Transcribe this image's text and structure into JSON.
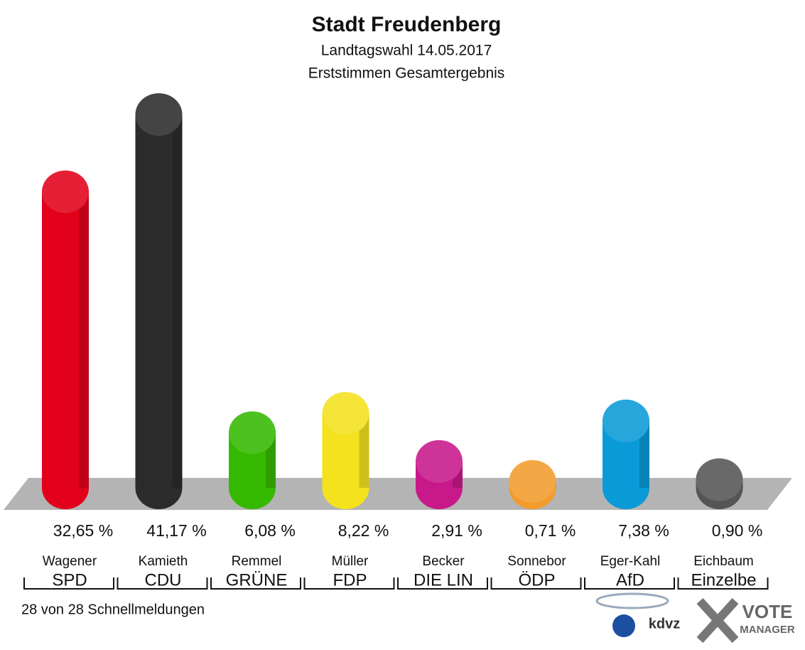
{
  "chart_data": {
    "type": "bar",
    "title": "Stadt Freudenberg",
    "subtitle": "Landtagswahl 14.05.2017",
    "subtitle2": "Erststimmen Gesamtergebnis",
    "categories": [
      "SPD",
      "CDU",
      "GRÜNE",
      "FDP",
      "DIE LIN",
      "ÖDP",
      "AfD",
      "Einzelbe"
    ],
    "candidates": [
      "Wagener",
      "Kamieth",
      "Remmel",
      "Müller",
      "Becker",
      "Sonnebor",
      "Eger-Kahl",
      "Eichbaum"
    ],
    "values": [
      32.65,
      41.17,
      6.08,
      8.22,
      2.91,
      0.71,
      7.38,
      0.9
    ],
    "value_labels": [
      "32,65 %",
      "41,17 %",
      "6,08 %",
      "8,22 %",
      "2,91 %",
      "0,71 %",
      "7,38 %",
      "0,90 %"
    ],
    "colors": [
      "#e2001a",
      "#2b2b2b",
      "#35b900",
      "#f4e21e",
      "#c8198a",
      "#f39b2c",
      "#0a9ad8",
      "#555555"
    ],
    "footnote": "28 von 28 Schnellmeldungen",
    "logo_texts": [
      "kdvz",
      "VOTE",
      "MANAGER"
    ]
  }
}
